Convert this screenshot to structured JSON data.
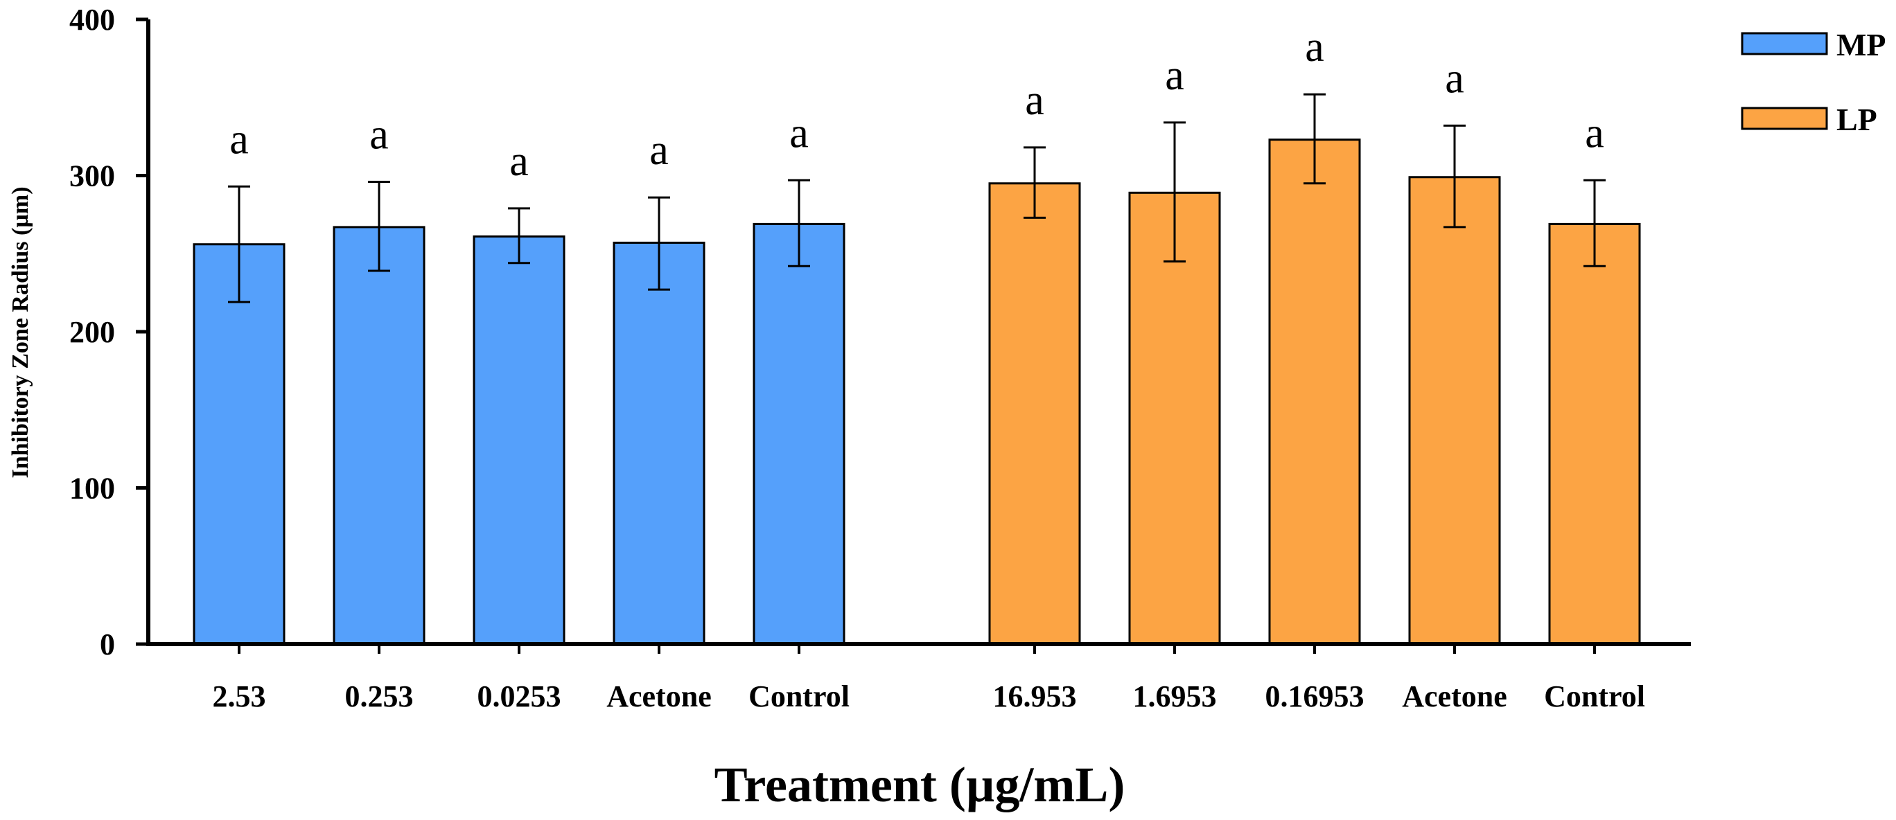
{
  "chart_data": {
    "type": "bar",
    "title": "",
    "xlabel": "Treatment (µg/mL)",
    "ylabel": "Inhibitory Zone Radius (µm)",
    "ylim": [
      0,
      400
    ],
    "yticks": [
      0,
      100,
      200,
      300,
      400
    ],
    "grid": false,
    "legend_position": "top-right",
    "series": [
      {
        "name": "MP",
        "color": "#55a0fb",
        "categories": [
          "2.53",
          "0.253",
          "0.0253",
          "Acetone",
          "Control"
        ],
        "values": [
          256,
          267,
          261,
          257,
          269
        ],
        "error_low": [
          219,
          239,
          244,
          227,
          242
        ],
        "error_high": [
          293,
          296,
          279,
          286,
          297
        ],
        "letters": [
          "a",
          "a",
          "a",
          "a",
          "a"
        ]
      },
      {
        "name": "LP",
        "color": "#fca444",
        "categories": [
          "16.953",
          "1.6953",
          "0.16953",
          "Acetone",
          "Control"
        ],
        "values": [
          295,
          289,
          323,
          299,
          269
        ],
        "error_low": [
          273,
          245,
          295,
          267,
          242
        ],
        "error_high": [
          318,
          334,
          352,
          332,
          297
        ],
        "letters": [
          "a",
          "a",
          "a",
          "a",
          "a"
        ]
      }
    ]
  }
}
